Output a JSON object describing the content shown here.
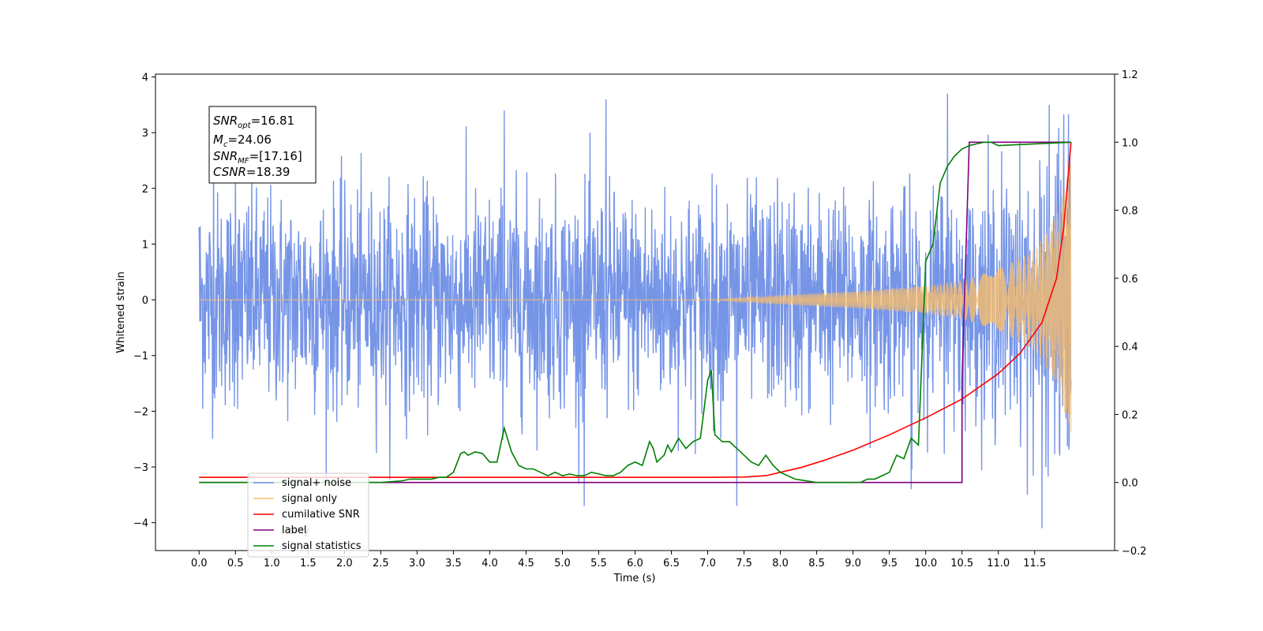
{
  "chart_data": {
    "type": "line",
    "xlabel": "Time (s)",
    "ylabel": "Whitened strain",
    "xlim": [
      -0.6,
      12.6
    ],
    "ylim": [
      -4.5,
      4.05
    ],
    "y2lim": [
      -0.2,
      1.2
    ],
    "xticks": [
      "0.0",
      "0.5",
      "1.0",
      "1.5",
      "2.0",
      "2.5",
      "3.0",
      "3.5",
      "4.0",
      "4.5",
      "5.0",
      "5.5",
      "6.0",
      "6.5",
      "7.0",
      "7.5",
      "8.0",
      "8.5",
      "9.0",
      "9.5",
      "10.0",
      "10.5",
      "11.0",
      "11.5"
    ],
    "yticks": [
      "4",
      "3",
      "2",
      "1",
      "0",
      "−1",
      "−2",
      "−3",
      "−4"
    ],
    "y2ticks": [
      "1.2",
      "1.0",
      "0.8",
      "0.6",
      "0.4",
      "0.2",
      "0.0",
      "−0.2"
    ],
    "annotation": {
      "snr_opt": "=16.81",
      "mc": "=24.06",
      "snr_mf": "=[17.16]",
      "csnr": "=18.39"
    },
    "legend": {
      "placement": "lower-left",
      "entries": [
        {
          "label": "signal+ noise",
          "color": "#6f8fe6"
        },
        {
          "label": "signal only",
          "color": "#ffbf66"
        },
        {
          "label": "cumilative SNR",
          "color": "#ff0000"
        },
        {
          "label": "label",
          "color": "#800080"
        },
        {
          "label": "signal statistics",
          "color": "#008000"
        }
      ],
      "hidden_fragment": "l only"
    },
    "series": [
      {
        "name": "signal+ noise",
        "axis": "left",
        "color": "#6f8fe6",
        "style": "noisy strain, amplitude about ±2 with peaks near ±3.6, from t=0 to t=12",
        "peaks": [
          [
            0.0,
            1.3
          ],
          [
            0.2,
            3.0
          ],
          [
            0.5,
            2.8
          ],
          [
            4.2,
            3.4
          ],
          [
            5.6,
            3.6
          ],
          [
            10.3,
            3.7
          ],
          [
            11.7,
            3.5
          ],
          [
            5.3,
            -3.7
          ],
          [
            7.4,
            -3.7
          ],
          [
            11.6,
            -4.1
          ],
          [
            9.8,
            -3.4
          ],
          [
            11.4,
            -3.5
          ]
        ]
      },
      {
        "name": "signal only",
        "axis": "left",
        "color": "#ffbf66",
        "style": "chirp, flat until ~7.2 s then growing oscillation",
        "envelope": [
          [
            0.0,
            0.0
          ],
          [
            7.0,
            0.0
          ],
          [
            8.0,
            0.08
          ],
          [
            9.0,
            0.15
          ],
          [
            10.0,
            0.25
          ],
          [
            10.5,
            0.35
          ],
          [
            11.0,
            0.55
          ],
          [
            11.5,
            0.9
          ],
          [
            11.8,
            1.5
          ],
          [
            12.0,
            2.5
          ]
        ]
      },
      {
        "name": "cumilative SNR",
        "axis": "right",
        "color": "#ff0000",
        "x": [
          0.0,
          1.0,
          2.0,
          3.0,
          4.0,
          5.0,
          6.0,
          7.0,
          7.5,
          7.8,
          8.0,
          8.3,
          8.6,
          9.0,
          9.5,
          10.0,
          10.5,
          11.0,
          11.3,
          11.6,
          11.8,
          11.9,
          12.0
        ],
        "values": [
          0.015,
          0.015,
          0.015,
          0.015,
          0.015,
          0.015,
          0.015,
          0.015,
          0.016,
          0.02,
          0.03,
          0.045,
          0.065,
          0.095,
          0.14,
          0.19,
          0.245,
          0.32,
          0.38,
          0.47,
          0.6,
          0.75,
          1.0
        ]
      },
      {
        "name": "label",
        "axis": "right",
        "color": "#800080",
        "x": [
          0.0,
          10.5,
          10.5,
          10.6,
          12.0
        ],
        "values": [
          0.0,
          0.0,
          0.3,
          1.0,
          1.0
        ]
      },
      {
        "name": "signal statistics",
        "axis": "right",
        "color": "#008000",
        "x": [
          0.0,
          2.5,
          2.8,
          2.9,
          3.0,
          3.1,
          3.2,
          3.3,
          3.4,
          3.5,
          3.6,
          3.65,
          3.7,
          3.8,
          3.9,
          4.0,
          4.1,
          4.2,
          4.3,
          4.4,
          4.5,
          4.6,
          4.7,
          4.8,
          4.9,
          5.0,
          5.1,
          5.2,
          5.3,
          5.4,
          5.5,
          5.6,
          5.7,
          5.8,
          5.9,
          6.0,
          6.1,
          6.2,
          6.25,
          6.3,
          6.4,
          6.45,
          6.5,
          6.6,
          6.7,
          6.8,
          6.9,
          7.0,
          7.05,
          7.1,
          7.2,
          7.3,
          7.4,
          7.5,
          7.6,
          7.7,
          7.8,
          7.9,
          8.0,
          8.2,
          8.5,
          8.8,
          9.0,
          9.1,
          9.2,
          9.3,
          9.4,
          9.5,
          9.6,
          9.7,
          9.8,
          9.9,
          10.0,
          10.1,
          10.2,
          10.3,
          10.4,
          10.5,
          10.6,
          10.7,
          10.8,
          10.9,
          11.0,
          12.0
        ],
        "values": [
          0.0,
          0.0,
          0.005,
          0.01,
          0.01,
          0.01,
          0.01,
          0.015,
          0.015,
          0.03,
          0.085,
          0.09,
          0.08,
          0.09,
          0.085,
          0.06,
          0.06,
          0.16,
          0.09,
          0.05,
          0.04,
          0.04,
          0.03,
          0.02,
          0.03,
          0.02,
          0.025,
          0.02,
          0.02,
          0.03,
          0.025,
          0.02,
          0.02,
          0.03,
          0.05,
          0.06,
          0.05,
          0.12,
          0.1,
          0.06,
          0.08,
          0.11,
          0.09,
          0.13,
          0.1,
          0.12,
          0.13,
          0.3,
          0.33,
          0.14,
          0.12,
          0.12,
          0.1,
          0.08,
          0.06,
          0.05,
          0.08,
          0.05,
          0.03,
          0.01,
          0.0,
          0.0,
          0.0,
          0.0,
          0.01,
          0.01,
          0.02,
          0.03,
          0.08,
          0.07,
          0.13,
          0.11,
          0.65,
          0.7,
          0.88,
          0.93,
          0.96,
          0.98,
          0.99,
          0.995,
          1.0,
          1.0,
          0.99,
          1.0
        ]
      }
    ]
  }
}
